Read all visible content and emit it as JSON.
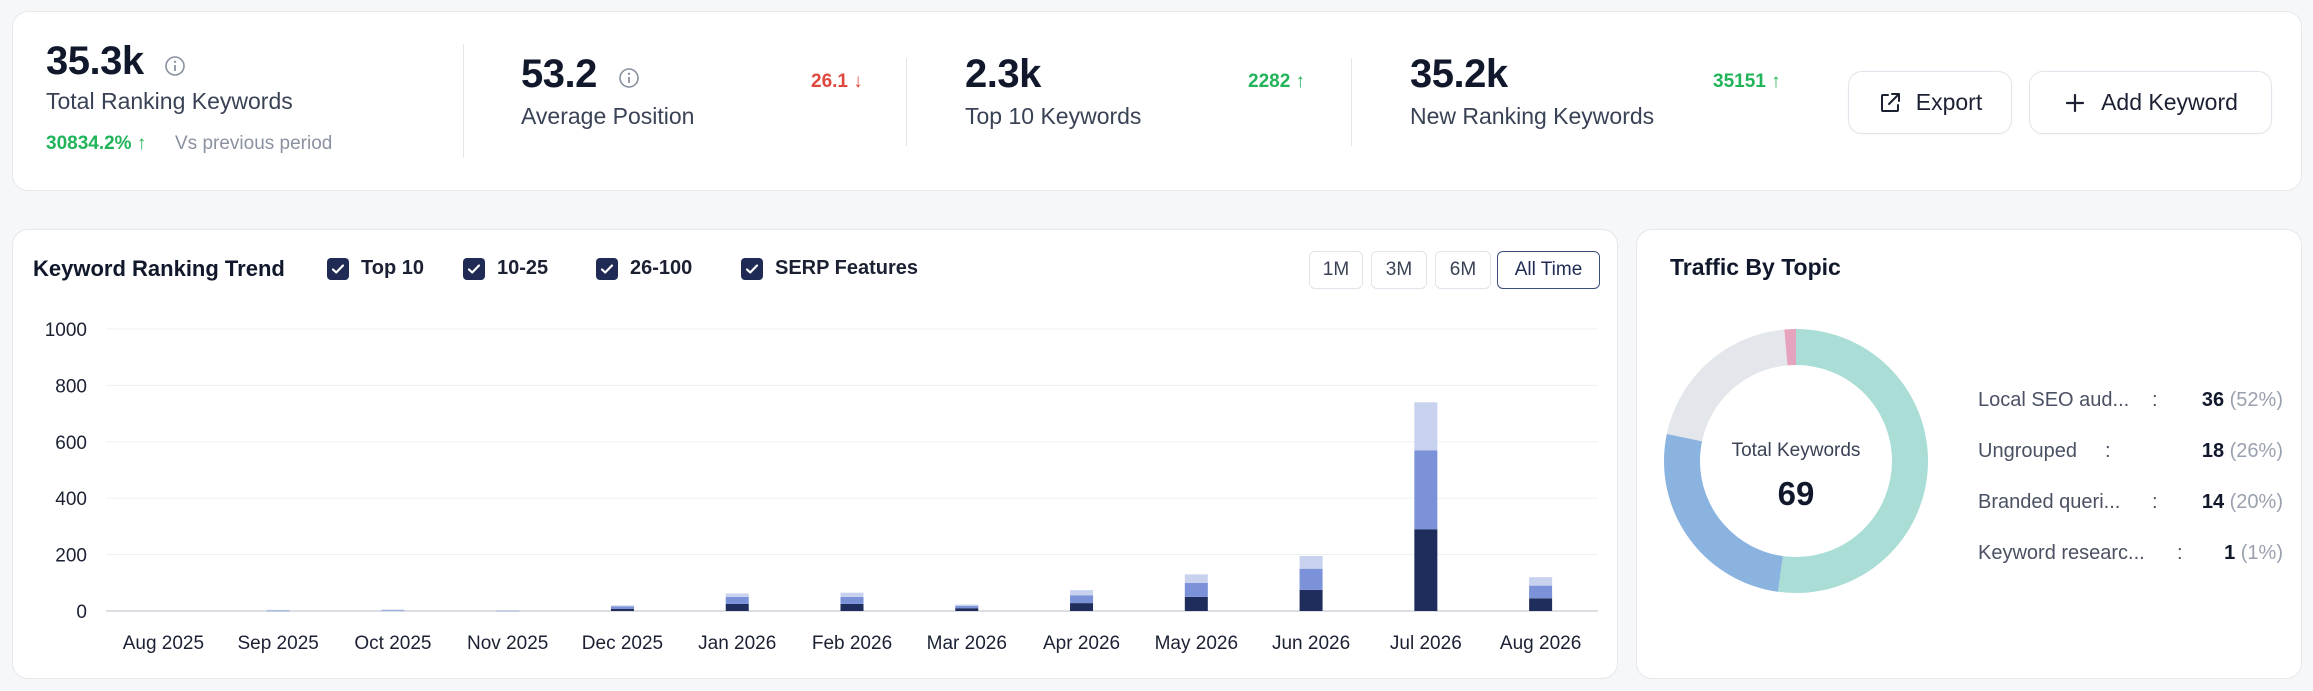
{
  "stats": {
    "total": {
      "value": "35.3k",
      "label": "Total Ranking Keywords",
      "delta": "30834.2% ↑",
      "vs": "Vs previous period"
    },
    "avg": {
      "value": "53.2",
      "label": "Average Position",
      "delta": "26.1 ↓"
    },
    "top10": {
      "value": "2.3k",
      "label": "Top 10 Keywords",
      "delta": "2282 ↑"
    },
    "new": {
      "value": "35.2k",
      "label": "New Ranking Keywords",
      "delta": "35151 ↑"
    }
  },
  "buttons": {
    "export": "Export",
    "add": "Add Keyword"
  },
  "trend": {
    "title": "Keyword Ranking Trend",
    "filters": [
      "Top 10",
      "10-25",
      "26-100",
      "SERP Features"
    ],
    "ranges": [
      "1M",
      "3M",
      "6M",
      "All Time"
    ],
    "active_range": "All Time"
  },
  "chart_data": {
    "type": "bar",
    "stacked": true,
    "categories": [
      "Aug 2025",
      "Sep 2025",
      "Oct 2025",
      "Nov 2025",
      "Dec 2025",
      "Jan 2026",
      "Feb 2026",
      "Mar 2026",
      "Apr 2026",
      "May 2026",
      "Jun 2026",
      "Jul 2026",
      "Aug 2026"
    ],
    "series": [
      {
        "name": "Top 10",
        "color": "#1f2d5c",
        "values": [
          0,
          0,
          0,
          0,
          8,
          25,
          25,
          10,
          28,
          50,
          75,
          290,
          45
        ]
      },
      {
        "name": "10-25",
        "color": "#7b92d9",
        "values": [
          0,
          2,
          3,
          2,
          8,
          25,
          25,
          8,
          28,
          50,
          75,
          280,
          45
        ]
      },
      {
        "name": "26-100",
        "color": "#c8d2ef",
        "values": [
          0,
          2,
          2,
          1,
          4,
          12,
          15,
          5,
          18,
          30,
          45,
          170,
          30
        ]
      }
    ],
    "yticks": [
      0,
      200,
      400,
      600,
      800,
      1000
    ],
    "ylim": [
      0,
      1000
    ],
    "grid": true,
    "legend": "top"
  },
  "traffic": {
    "title": "Traffic By Topic",
    "center_label": "Total Keywords",
    "center_value": "69",
    "topics": [
      {
        "name": "Local SEO aud...",
        "sep": ":",
        "count": "36",
        "pct": "(52%)",
        "value": 36,
        "color": "#a9ddd6"
      },
      {
        "name": "Ungrouped",
        "sep": ":",
        "count": "18",
        "pct": "(26%)",
        "value": 18,
        "color": "#8ab3e0"
      },
      {
        "name": "Branded queri...",
        "sep": ":",
        "count": "14",
        "pct": "(20%)",
        "value": 14,
        "color": "#e3e6eb"
      },
      {
        "name": "Keyword researc...",
        "sep": ":",
        "count": "1",
        "pct": "(1%)",
        "value": 1,
        "color": "#e6a3bd"
      }
    ]
  }
}
